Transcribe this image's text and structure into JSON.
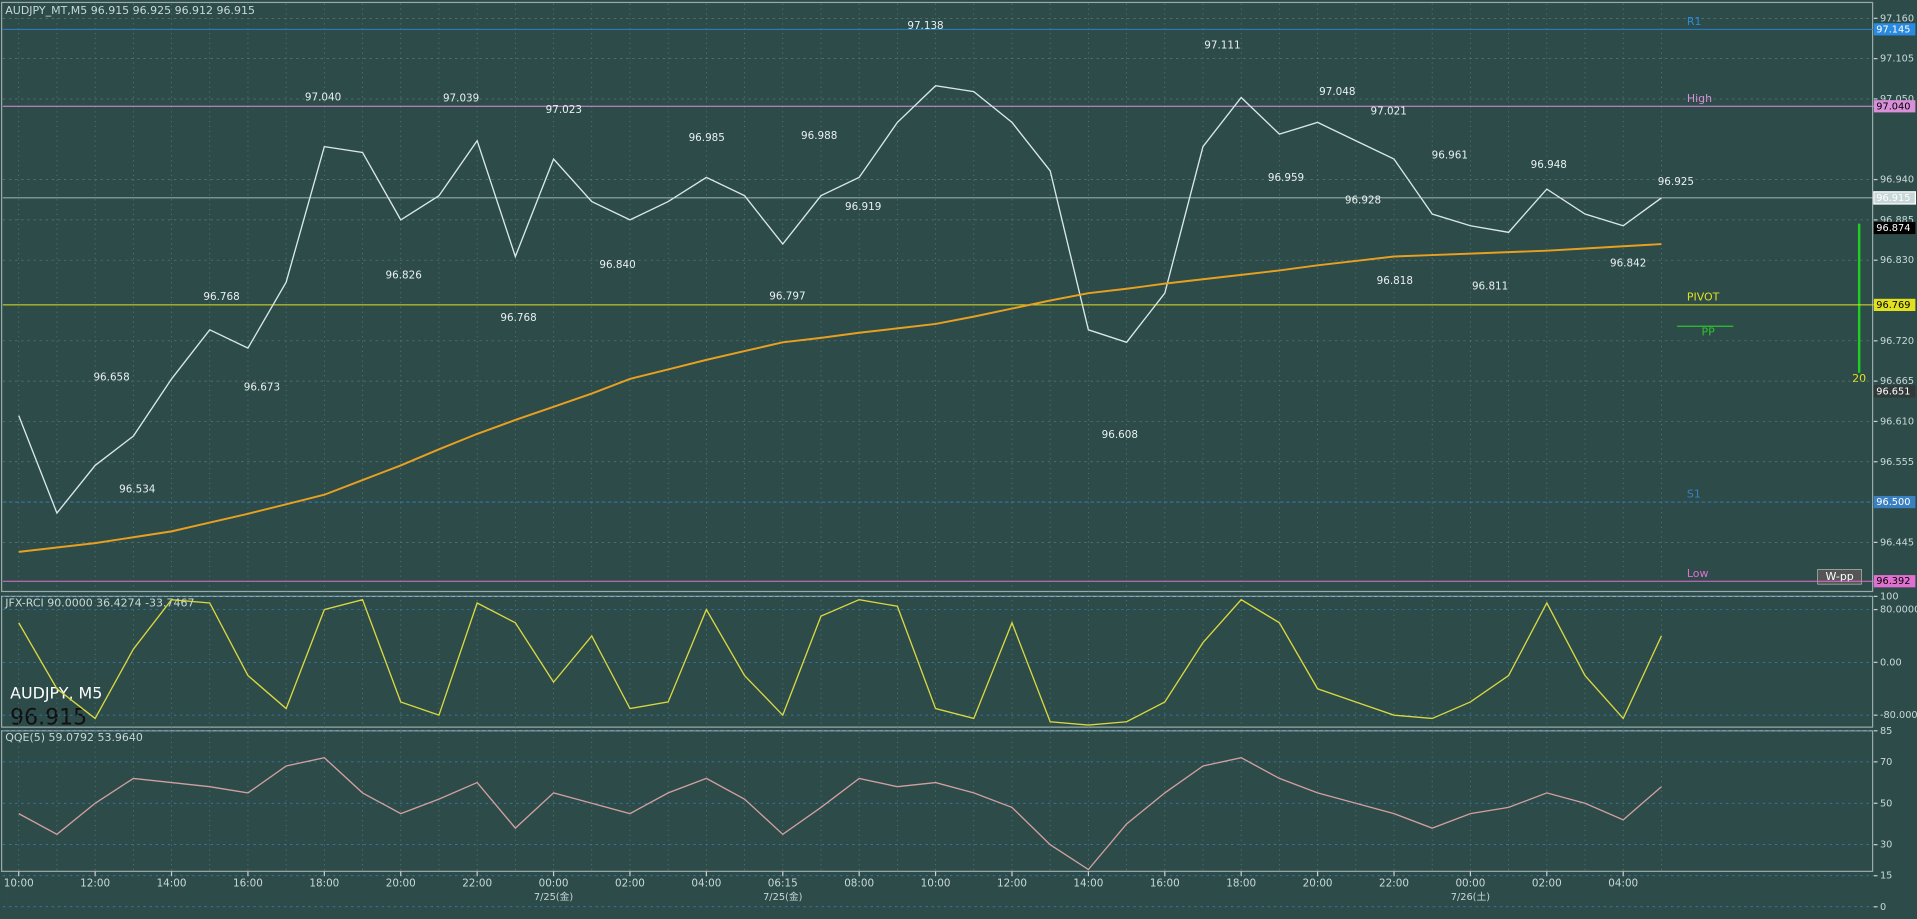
{
  "chart_data": [
    {
      "type": "line",
      "title": "AUDJPY_MT,M5  96.915 96.925 96.912 96.915",
      "watermark": "AUDJPY, M5",
      "watermark_price": "96.915",
      "categories": [
        "10:00",
        null,
        "12:00",
        null,
        "14:00",
        null,
        "16:00",
        null,
        "18:00",
        null,
        "20:00",
        null,
        "22:00",
        null,
        "00:00",
        null,
        "02:00",
        null,
        "04:00",
        null,
        "06:15",
        null,
        "08:00",
        null,
        "10:00",
        null,
        "12:00",
        null,
        "14:00",
        null,
        "16:00",
        null,
        "18:00",
        null,
        "20:00",
        null,
        "22:00",
        null,
        "00:00",
        null,
        "02:00",
        null,
        "04:00",
        null
      ],
      "date_labels": [
        "7/25(金)",
        "7/25(金)",
        "7/26(土)"
      ],
      "series": [
        {
          "color": "#d8e8e8",
          "values": [
            96.618,
            96.485,
            96.55,
            96.59,
            96.668,
            96.735,
            96.71,
            96.8,
            96.985,
            96.977,
            96.885,
            96.918,
            96.993,
            96.835,
            96.968,
            96.91,
            96.885,
            96.91,
            96.943,
            96.918,
            96.852,
            96.918,
            96.943,
            97.018,
            97.068,
            97.06,
            97.018,
            96.952,
            96.735,
            96.718,
            96.785,
            96.985,
            97.052,
            97.002,
            97.018,
            96.993,
            96.968,
            96.893,
            96.877,
            96.868,
            96.927,
            96.893,
            96.877,
            96.915
          ]
        },
        {
          "color": "#e8a020",
          "values": [
            96.432,
            96.438,
            96.444,
            96.452,
            96.46,
            96.472,
            96.484,
            96.497,
            96.51,
            96.53,
            96.55,
            96.572,
            96.593,
            96.612,
            96.63,
            96.648,
            96.668,
            96.681,
            96.694,
            96.706,
            96.718,
            96.724,
            96.731,
            96.737,
            96.743,
            96.753,
            96.764,
            96.775,
            96.785,
            96.791,
            96.798,
            96.804,
            96.81,
            96.816,
            96.823,
            96.829,
            96.835,
            96.837,
            96.839,
            96.841,
            96.843,
            96.846,
            96.849,
            96.852
          ]
        }
      ],
      "ylim": [
        96.378,
        97.18
      ],
      "yticks": [
        {
          "value": 97.16,
          "label": "97.160"
        },
        {
          "value": 97.105,
          "label": "97.105"
        },
        {
          "value": 97.05,
          "label": "97.050"
        },
        {
          "value": 96.94,
          "label": "96.940"
        },
        {
          "value": 96.885,
          "label": "96.885"
        },
        {
          "value": 96.83,
          "label": "96.830"
        },
        {
          "value": 96.72,
          "label": "96.720"
        },
        {
          "value": 96.665,
          "label": "96.665"
        },
        {
          "value": 96.61,
          "label": "96.610"
        },
        {
          "value": 96.555,
          "label": "96.555"
        },
        {
          "value": 96.445,
          "label": "96.445"
        }
      ],
      "levels": [
        {
          "name": "R1",
          "value": 97.145,
          "label": "97.145",
          "color": "#2a8ae0"
        },
        {
          "name": "High",
          "value": 97.04,
          "label": "97.040",
          "color": "#d890d8"
        },
        {
          "value": 96.915,
          "label": "96.915",
          "color": "#c8d8d8"
        },
        {
          "value": 96.874,
          "label": "96.874",
          "color": "#000000"
        },
        {
          "name": "PIVOT",
          "value": 96.769,
          "label": "96.769",
          "color": "#e0e020"
        },
        {
          "value": 96.651,
          "label": "96.651",
          "color": "#303838"
        },
        {
          "name": "S1",
          "value": 96.5,
          "label": "96.500",
          "color": "#3a80c0"
        },
        {
          "name": "Low",
          "value": 96.392,
          "label": "96.392",
          "color": "#e070d0"
        }
      ],
      "pp_label": "PP",
      "wpp_label": "W-pp",
      "bar_label": "20",
      "annotations": [
        {
          "value": 97.04,
          "label": "97.040"
        },
        {
          "value": 97.039,
          "label": "97.039"
        },
        {
          "value": 97.023,
          "label": "97.023"
        },
        {
          "value": 96.985,
          "label": "96.985"
        },
        {
          "value": 96.988,
          "label": "96.988"
        },
        {
          "value": 97.138,
          "label": "97.138"
        },
        {
          "value": 97.111,
          "label": "97.111"
        },
        {
          "value": 97.048,
          "label": "97.048"
        },
        {
          "value": 97.021,
          "label": "97.021"
        },
        {
          "value": 96.961,
          "label": "96.961"
        },
        {
          "value": 96.948,
          "label": "96.948"
        },
        {
          "value": 96.925,
          "label": "96.925"
        },
        {
          "value": 96.768,
          "label": "96.768"
        },
        {
          "value": 96.658,
          "label": "96.658"
        },
        {
          "value": 96.534,
          "label": "96.534"
        },
        {
          "value": 96.673,
          "label": "96.673"
        },
        {
          "value": 96.826,
          "label": "96.826"
        },
        {
          "value": 96.768,
          "label": "96.768"
        },
        {
          "value": 96.84,
          "label": "96.840"
        },
        {
          "value": 96.797,
          "label": "96.797"
        },
        {
          "value": 96.919,
          "label": "96.919"
        },
        {
          "value": 96.608,
          "label": "96.608"
        },
        {
          "value": 96.959,
          "label": "96.959"
        },
        {
          "value": 96.928,
          "label": "96.928"
        },
        {
          "value": 96.818,
          "label": "96.818"
        },
        {
          "value": 96.811,
          "label": "96.811"
        },
        {
          "value": 96.842,
          "label": "96.842"
        }
      ]
    },
    {
      "type": "line",
      "title": "JFX-RCI 90.0000 36.4274 -33.7467",
      "series": [
        {
          "color": "#d8d840",
          "values": [
            60,
            -40,
            -85,
            20,
            95,
            90,
            -20,
            -70,
            80,
            95,
            -60,
            -80,
            90,
            60,
            -30,
            40,
            -70,
            -60,
            80,
            -20,
            -80,
            70,
            95,
            85,
            -70,
            -85,
            60,
            -90,
            -95,
            -90,
            -60,
            30,
            95,
            60,
            -40,
            -60,
            -80,
            -85,
            -60,
            -20,
            90,
            -20,
            -85,
            40
          ]
        }
      ],
      "ylim": [
        -100,
        100
      ],
      "yticks": [
        100,
        {
          "value": 80,
          "label": "80.0000"
        },
        {
          "value": 0,
          "label": "0.00"
        },
        {
          "value": -80,
          "label": "-80.0000"
        }
      ]
    },
    {
      "type": "line",
      "title": "QQE(5) 59.0792 53.9640",
      "series": [
        {
          "color": "#d0a0a0",
          "values": [
            45,
            35,
            50,
            62,
            60,
            58,
            55,
            68,
            72,
            55,
            45,
            52,
            60,
            38,
            55,
            50,
            45,
            55,
            62,
            52,
            35,
            48,
            62,
            58,
            60,
            55,
            48,
            30,
            18,
            40,
            55,
            68,
            72,
            62,
            55,
            50,
            45,
            38,
            45,
            48,
            55,
            50,
            42,
            58
          ]
        }
      ],
      "ylim": [
        0,
        85
      ],
      "yticks": [
        85,
        70,
        50,
        30,
        15,
        0
      ]
    }
  ]
}
